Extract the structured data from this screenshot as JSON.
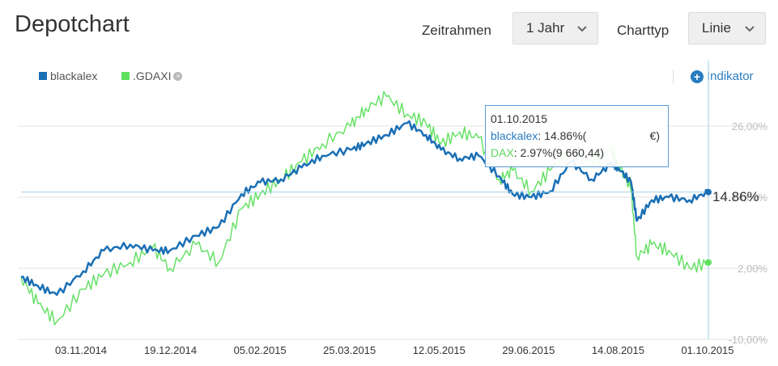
{
  "header": {
    "title": "Depotchart",
    "timeframe_label": "Zeitrahmen",
    "timeframe_value": "1 Jahr",
    "charttype_label": "Charttyp",
    "charttype_value": "Linie"
  },
  "legend": {
    "series1": "blackalex",
    "series2": ".GDAXI",
    "indikator": "Indikator"
  },
  "tooltip": {
    "date": "01.10.2015",
    "line1_name": "blackalex",
    "line1_value": ": 14.86%(",
    "line1_suffix": "€)",
    "line2_name": "DAX",
    "line2_value": ": 2.97%(9 660,44)"
  },
  "last_value_label": "14.86%",
  "colors": {
    "blackalex": "#1a6fb5",
    "gdaxi": "#5fe05f",
    "crosshair": "#9fd0e6",
    "grid": "#e3e3e3"
  },
  "chart_data": {
    "type": "line",
    "title": "",
    "xlabel": "",
    "ylabel": "",
    "ylim": [
      -10,
      32
    ],
    "yticks": [
      "26,00%",
      "14,00%",
      "2,00%",
      "-10,00%"
    ],
    "ytick_values": [
      26,
      14,
      2,
      -10
    ],
    "x_tick_labels": [
      "03.11.2014",
      "19.12.2014",
      "05.02.2015",
      "25.03.2015",
      "12.05.2015",
      "29.06.2015",
      "14.08.2015",
      "01.10.2015"
    ],
    "x_range": [
      "2014-10-01",
      "2015-10-01"
    ],
    "legend_position": "top-left",
    "grid": true,
    "series": [
      {
        "name": "blackalex",
        "dates": [
          "2014-10-01",
          "2014-10-10",
          "2014-10-20",
          "2014-11-03",
          "2014-11-14",
          "2014-11-28",
          "2014-12-10",
          "2014-12-19",
          "2015-01-02",
          "2015-01-14",
          "2015-01-26",
          "2015-02-05",
          "2015-02-16",
          "2015-02-27",
          "2015-03-10",
          "2015-03-25",
          "2015-04-02",
          "2015-04-13",
          "2015-04-24",
          "2015-05-04",
          "2015-05-12",
          "2015-05-22",
          "2015-06-01",
          "2015-06-12",
          "2015-06-19",
          "2015-06-29",
          "2015-07-09",
          "2015-07-20",
          "2015-07-31",
          "2015-08-10",
          "2015-08-14",
          "2015-08-21",
          "2015-08-24",
          "2015-09-01",
          "2015-09-10",
          "2015-09-21",
          "2015-10-01"
        ],
        "values": [
          0.5,
          -1.0,
          -2.5,
          1.5,
          5.0,
          6.0,
          5.0,
          5.0,
          7.5,
          9.0,
          14.5,
          16.5,
          17.0,
          19.0,
          21.0,
          22.0,
          23.0,
          24.5,
          26.5,
          24.5,
          22.0,
          20.5,
          21.0,
          17.5,
          14.5,
          14.0,
          15.0,
          20.0,
          17.0,
          19.5,
          19.0,
          16.5,
          10.0,
          13.5,
          14.0,
          13.5,
          14.86
        ]
      },
      {
        "name": ".GDAXI",
        "dates": [
          "2014-10-01",
          "2014-10-10",
          "2014-10-20",
          "2014-11-03",
          "2014-11-14",
          "2014-11-28",
          "2014-12-10",
          "2014-12-19",
          "2015-01-02",
          "2015-01-14",
          "2015-01-26",
          "2015-02-05",
          "2015-02-16",
          "2015-02-27",
          "2015-03-10",
          "2015-03-25",
          "2015-04-02",
          "2015-04-13",
          "2015-04-24",
          "2015-05-04",
          "2015-05-12",
          "2015-05-22",
          "2015-06-01",
          "2015-06-12",
          "2015-06-19",
          "2015-06-29",
          "2015-07-09",
          "2015-07-20",
          "2015-07-31",
          "2015-08-10",
          "2015-08-14",
          "2015-08-21",
          "2015-08-24",
          "2015-09-01",
          "2015-09-10",
          "2015-09-21",
          "2015-10-01"
        ],
        "values": [
          0.5,
          -4.0,
          -7.0,
          -1.5,
          1.0,
          3.0,
          5.5,
          2.0,
          6.0,
          3.0,
          12.0,
          14.5,
          17.0,
          20.0,
          23.0,
          26.0,
          29.0,
          31.0,
          28.0,
          26.5,
          23.0,
          25.0,
          24.0,
          17.0,
          18.5,
          15.0,
          18.5,
          22.5,
          20.0,
          22.0,
          20.0,
          15.0,
          4.0,
          6.0,
          5.0,
          2.0,
          2.97
        ]
      }
    ]
  }
}
